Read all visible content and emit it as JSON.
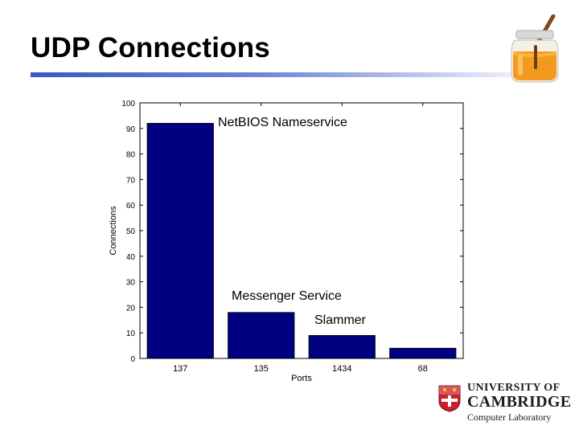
{
  "slide": {
    "title": "UDP Connections"
  },
  "chart_data": {
    "type": "bar",
    "categories": [
      "137",
      "135",
      "1434",
      "68"
    ],
    "values": [
      92,
      18,
      9,
      4
    ],
    "xlabel": "Ports",
    "ylabel": "Connections",
    "ylim": [
      0,
      100
    ],
    "yticks": [
      0,
      10,
      20,
      30,
      40,
      50,
      60,
      70,
      80,
      90,
      100
    ],
    "bar_color": "#000080",
    "grid": false,
    "annotations": [
      "NetBIOS Nameservice",
      "Messenger Service",
      "Slammer"
    ]
  },
  "logo": {
    "line1": "UNIVERSITY OF",
    "line2": "CAMBRIDGE",
    "line3": "Computer Laboratory",
    "shield_color": "#c8202f"
  },
  "decor": {
    "honey_jar_icon": "honey-jar-icon"
  }
}
